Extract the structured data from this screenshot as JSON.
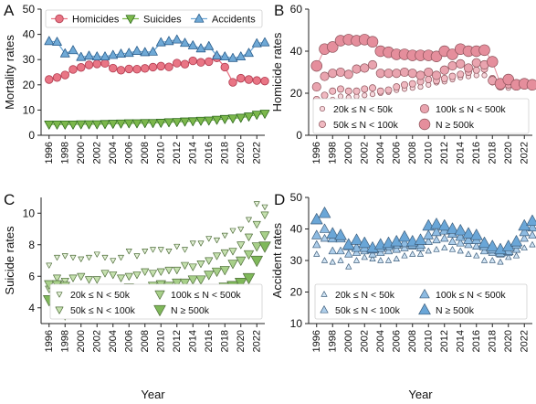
{
  "colors": {
    "homicide_fill": "#E97585",
    "homicide_stroke": "#B03A4E",
    "suicide_fill": "#7CB84C",
    "suicide_stroke": "#2F6B1E",
    "accident_fill": "#6FA9D6",
    "accident_stroke": "#2C5E8C",
    "hom_group_fill": [
      "#F7D9DE",
      "#F0B9C1",
      "#E9A4AF",
      "#E58E9C"
    ],
    "sui_group_fill": [
      "#E3F0D6",
      "#C5E0AE",
      "#A8D08A",
      "#7FB85A"
    ],
    "acc_group_fill": [
      "#D3E5F4",
      "#AFCFEB",
      "#8DBBE2",
      "#6AA6D7"
    ]
  },
  "chart_data": [
    {
      "panel": "A",
      "type": "line",
      "xlabel": "",
      "ylabel": "Mortality rates",
      "xlim": [
        1995,
        2023
      ],
      "ylim": [
        0,
        50
      ],
      "xticks": [
        1996,
        1998,
        2000,
        2002,
        2004,
        2006,
        2008,
        2010,
        2012,
        2014,
        2016,
        2018,
        2020,
        2022
      ],
      "yticks": [
        0,
        10,
        20,
        30,
        40,
        50
      ],
      "legend_position": "top",
      "x": [
        1996,
        1997,
        1998,
        1999,
        2000,
        2001,
        2002,
        2003,
        2004,
        2005,
        2006,
        2007,
        2008,
        2009,
        2010,
        2011,
        2012,
        2013,
        2014,
        2015,
        2016,
        2017,
        2018,
        2019,
        2020,
        2021,
        2022,
        2023
      ],
      "series": [
        {
          "name": "Homicides",
          "marker": "circle",
          "values": [
            22.1,
            22.9,
            23.9,
            26.1,
            26.9,
            27.9,
            28.3,
            28.5,
            26.6,
            25.8,
            26.3,
            26.2,
            26.5,
            27.0,
            27.4,
            27.1,
            28.6,
            28.2,
            29.5,
            28.9,
            29.2,
            30.7,
            27.0,
            21.0,
            22.6,
            22.1,
            21.7,
            21.5
          ]
        },
        {
          "name": "Suicides",
          "marker": "triangle-down",
          "values": [
            4.3,
            4.3,
            4.3,
            4.3,
            4.4,
            4.4,
            4.4,
            4.5,
            4.6,
            4.7,
            4.8,
            4.8,
            4.9,
            4.9,
            5.0,
            5.2,
            5.3,
            5.5,
            5.6,
            5.8,
            5.9,
            6.2,
            6.5,
            6.7,
            7.0,
            7.5,
            8.2,
            8.6
          ]
        },
        {
          "name": "Accidents",
          "marker": "triangle-up",
          "values": [
            37.3,
            37.0,
            32.4,
            33.7,
            31.0,
            31.5,
            31.2,
            31.2,
            31.8,
            32.3,
            32.6,
            33.4,
            32.9,
            33.1,
            36.8,
            37.3,
            37.9,
            36.6,
            35.6,
            34.4,
            35.3,
            31.6,
            31.2,
            30.6,
            31.2,
            32.6,
            36.4,
            36.8
          ]
        }
      ]
    },
    {
      "panel": "B",
      "type": "scatter",
      "xlabel": "",
      "ylabel": "Homicide rates",
      "xlim": [
        1995,
        2023
      ],
      "ylim": [
        0,
        60
      ],
      "xticks": [
        1996,
        1998,
        2000,
        2002,
        2004,
        2006,
        2008,
        2010,
        2012,
        2014,
        2016,
        2018,
        2020,
        2022
      ],
      "yticks": [
        0,
        20,
        40,
        60
      ],
      "legend_position": "bottom",
      "x": [
        1996,
        1997,
        1998,
        1999,
        2000,
        2001,
        2002,
        2003,
        2004,
        2005,
        2006,
        2007,
        2008,
        2009,
        2010,
        2011,
        2012,
        2013,
        2014,
        2015,
        2016,
        2017,
        2018,
        2019,
        2020,
        2021,
        2022,
        2023
      ],
      "series": [
        {
          "name": "20k ≤ N < 50k",
          "values": [
            15.0,
            16.0,
            17.0,
            18.5,
            18.0,
            18.5,
            19.0,
            19.5,
            20.0,
            20.5,
            21.5,
            22.0,
            22.5,
            23.0,
            24.0,
            25.0,
            25.5,
            26.5,
            27.5,
            28.0,
            28.5,
            28.5,
            25.0,
            23.0,
            22.5,
            23.0,
            23.5,
            23.0
          ]
        },
        {
          "name": "50k ≤ N < 100k",
          "values": [
            17.0,
            19.0,
            21.0,
            22.0,
            21.0,
            21.0,
            22.0,
            22.5,
            21.0,
            21.5,
            23.0,
            24.0,
            24.5,
            25.5,
            26.5,
            26.0,
            27.0,
            28.0,
            29.0,
            30.0,
            31.0,
            31.5,
            27.0,
            24.0,
            24.0,
            24.5,
            24.0,
            23.5
          ]
        },
        {
          "name": "100k ≤ N < 500k",
          "values": [
            23.0,
            28.0,
            29.5,
            30.0,
            29.0,
            31.5,
            32.0,
            33.5,
            29.5,
            29.5,
            29.5,
            30.0,
            29.5,
            28.5,
            30.0,
            28.5,
            31.0,
            33.0,
            34.0,
            32.0,
            34.5,
            33.5,
            26.0,
            23.5,
            24.5,
            24.0,
            24.0,
            23.5
          ]
        },
        {
          "name": "N ≥ 500k",
          "values": [
            33.0,
            41.0,
            42.0,
            45.0,
            45.5,
            45.0,
            45.5,
            44.5,
            40.0,
            39.5,
            38.5,
            38.5,
            38.0,
            38.0,
            38.0,
            37.5,
            40.0,
            38.5,
            41.0,
            40.0,
            40.0,
            40.5,
            35.0,
            24.5,
            26.5,
            24.0,
            24.5,
            24.0
          ]
        }
      ]
    },
    {
      "panel": "C",
      "type": "scatter",
      "xlabel": "Year",
      "ylabel": "Suicide rates",
      "xlim": [
        1995,
        2023
      ],
      "ylim": [
        3,
        11
      ],
      "xticks": [
        1996,
        1998,
        2000,
        2002,
        2004,
        2006,
        2008,
        2010,
        2012,
        2014,
        2016,
        2018,
        2020,
        2022
      ],
      "yticks": [
        4,
        6,
        8,
        10
      ],
      "legend_position": "bottom",
      "x": [
        1996,
        1997,
        1998,
        1999,
        2000,
        2001,
        2002,
        2003,
        2004,
        2005,
        2006,
        2007,
        2008,
        2009,
        2010,
        2011,
        2012,
        2013,
        2014,
        2015,
        2016,
        2017,
        2018,
        2019,
        2020,
        2021,
        2022,
        2023
      ],
      "series": [
        {
          "name": "20k ≤ N < 50k",
          "values": [
            6.7,
            7.2,
            7.3,
            7.2,
            7.1,
            7.2,
            7.4,
            7.2,
            7.0,
            7.2,
            7.6,
            7.3,
            7.6,
            7.7,
            7.7,
            7.6,
            7.9,
            7.7,
            8.1,
            8.1,
            8.4,
            8.3,
            8.6,
            8.9,
            9.0,
            9.6,
            10.6,
            10.4
          ]
        },
        {
          "name": "50k ≤ N < 100k",
          "values": [
            5.2,
            5.9,
            5.7,
            5.9,
            6.0,
            5.8,
            5.8,
            6.2,
            6.1,
            5.9,
            6.0,
            6.1,
            6.3,
            6.2,
            6.3,
            6.4,
            6.4,
            6.7,
            6.6,
            6.8,
            7.0,
            7.3,
            7.5,
            7.6,
            8.0,
            8.5,
            9.3,
            9.9
          ]
        },
        {
          "name": "100k ≤ N < 500k",
          "values": [
            5.5,
            5.5,
            5.4,
            4.9,
            4.8,
            5.0,
            5.0,
            5.1,
            5.1,
            5.0,
            5.3,
            5.1,
            5.2,
            5.4,
            5.5,
            5.4,
            5.6,
            5.6,
            5.8,
            5.8,
            6.1,
            6.3,
            6.4,
            6.8,
            7.0,
            7.4,
            7.9,
            8.6
          ]
        },
        {
          "name": "N ≥ 500k",
          "values": [
            4.5,
            4.2,
            3.6,
            3.9,
            4.2,
            4.0,
            4.1,
            4.2,
            4.4,
            4.3,
            4.5,
            4.4,
            4.5,
            4.5,
            4.6,
            4.6,
            4.7,
            4.6,
            4.7,
            4.8,
            5.0,
            5.1,
            5.3,
            5.4,
            5.6,
            5.9,
            7.0,
            7.9
          ]
        }
      ]
    },
    {
      "panel": "D",
      "type": "scatter",
      "xlabel": "Year",
      "ylabel": "Accident rates",
      "xlim": [
        1995,
        2023
      ],
      "ylim": [
        10,
        50
      ],
      "xticks": [
        1996,
        1998,
        2000,
        2002,
        2004,
        2006,
        2008,
        2010,
        2012,
        2014,
        2016,
        2018,
        2020,
        2022
      ],
      "yticks": [
        10,
        20,
        30,
        40,
        50
      ],
      "legend_position": "bottom",
      "x": [
        1996,
        1997,
        1998,
        1999,
        2000,
        2001,
        2002,
        2003,
        2004,
        2005,
        2006,
        2007,
        2008,
        2009,
        2010,
        2011,
        2012,
        2013,
        2014,
        2015,
        2016,
        2017,
        2018,
        2019,
        2020,
        2021,
        2022,
        2023
      ],
      "series": [
        {
          "name": "20k ≤ N < 50k",
          "values": [
            32.0,
            30.0,
            29.5,
            30.0,
            28.0,
            30.0,
            31.0,
            30.5,
            30.0,
            30.0,
            30.5,
            31.5,
            32.0,
            32.0,
            33.0,
            33.5,
            34.0,
            33.5,
            33.0,
            32.0,
            31.5,
            30.0,
            30.0,
            29.5,
            31.0,
            31.5,
            34.0,
            35.0
          ]
        },
        {
          "name": "50k ≤ N < 100k",
          "values": [
            35.0,
            37.0,
            33.0,
            33.0,
            32.0,
            32.5,
            33.0,
            32.0,
            32.5,
            33.0,
            33.5,
            34.0,
            34.5,
            34.0,
            36.0,
            36.5,
            37.0,
            36.0,
            35.5,
            35.0,
            34.5,
            33.0,
            32.5,
            32.0,
            32.5,
            33.5,
            37.0,
            38.0
          ]
        },
        {
          "name": "100k ≤ N < 500k",
          "values": [
            38.0,
            40.0,
            37.0,
            37.0,
            34.5,
            34.0,
            34.0,
            33.5,
            34.0,
            34.5,
            35.0,
            35.5,
            35.0,
            35.0,
            38.0,
            39.0,
            39.5,
            38.5,
            37.5,
            36.5,
            36.5,
            34.5,
            33.5,
            32.5,
            33.0,
            35.0,
            39.0,
            40.5
          ]
        },
        {
          "name": "N ≥ 500k",
          "values": [
            43.0,
            45.0,
            38.5,
            38.0,
            35.0,
            36.5,
            35.5,
            34.0,
            35.0,
            35.5,
            36.0,
            37.5,
            36.0,
            36.5,
            41.0,
            41.5,
            41.0,
            40.0,
            39.5,
            38.5,
            38.0,
            35.5,
            34.5,
            33.5,
            34.5,
            36.0,
            41.0,
            42.5
          ]
        }
      ]
    }
  ]
}
